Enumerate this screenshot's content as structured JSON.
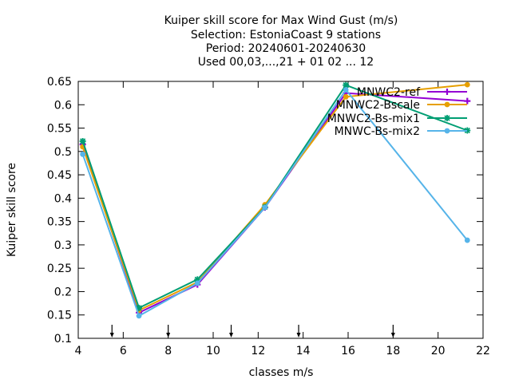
{
  "chart_data": {
    "type": "line",
    "title_lines": [
      "Kuiper skill score  for Max Wind Gust (m/s)",
      "Selection: EstoniaCoast      9 stations",
      "Period: 20240601-20240630",
      "Used 00,03,...,21 + 01 02 ... 12"
    ],
    "xlabel": "classes m/s",
    "ylabel": "Kuiper skill score",
    "xlim": [
      4,
      22
    ],
    "ylim": [
      0.1,
      0.65
    ],
    "xticks": [
      4,
      6,
      8,
      10,
      12,
      14,
      16,
      18,
      20,
      22
    ],
    "yticks": [
      0.1,
      0.15,
      0.2,
      0.25,
      0.3,
      0.35,
      0.4,
      0.45,
      0.5,
      0.55,
      0.6,
      0.65
    ],
    "ytick_labels": [
      "0.1",
      "0.15",
      "0.2",
      "0.25",
      "0.3",
      "0.35",
      "0.4",
      "0.45",
      "0.5",
      "0.55",
      "0.6",
      "0.65"
    ],
    "class_markers_x": [
      5.5,
      8,
      10.8,
      13.8,
      18
    ],
    "legend_position": "top-right",
    "grid": false,
    "series": [
      {
        "name": "MNWC2-ref",
        "color": "#9400d3",
        "marker": "plus",
        "x": [
          4.2,
          6.7,
          9.3,
          12.3,
          15.9,
          21.3
        ],
        "y": [
          0.515,
          0.155,
          0.215,
          0.38,
          0.625,
          0.608
        ]
      },
      {
        "name": "MNWC2-Bscale",
        "color": "#e69f00",
        "marker": "circle",
        "x": [
          4.2,
          6.7,
          9.3,
          12.3,
          15.9,
          21.3
        ],
        "y": [
          0.51,
          0.16,
          0.22,
          0.386,
          0.617,
          0.643
        ]
      },
      {
        "name": "MNWC2-Bs-mix1",
        "color": "#009e73",
        "marker": "star",
        "x": [
          4.2,
          6.7,
          9.3,
          12.3,
          15.9,
          21.3
        ],
        "y": [
          0.522,
          0.165,
          0.226,
          0.381,
          0.642,
          0.545
        ]
      },
      {
        "name": "MNWC-Bs-mix2",
        "color": "#56b4e9",
        "marker": "circle",
        "x": [
          4.2,
          6.7,
          9.3,
          12.3,
          15.9,
          21.3
        ],
        "y": [
          0.494,
          0.148,
          0.218,
          0.38,
          0.632,
          0.31
        ]
      }
    ]
  }
}
